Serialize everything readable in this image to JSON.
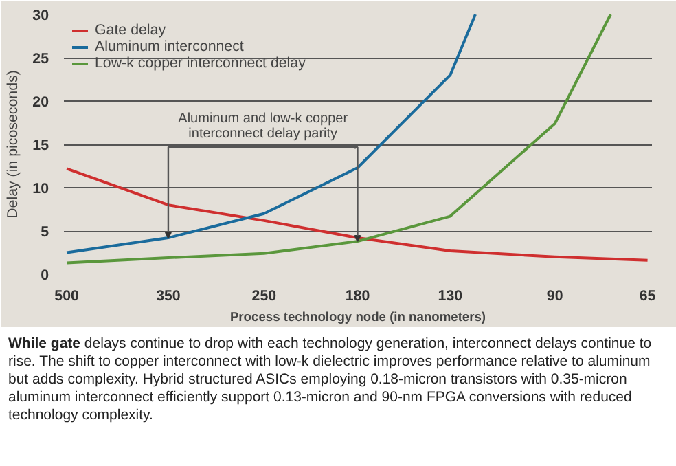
{
  "chart_data": {
    "type": "line",
    "xlabel": "Process technology node (in nanometers)",
    "ylabel": "Delay (in picoseconds)",
    "xlim": [
      505,
      64
    ],
    "xticks": [
      500,
      350,
      250,
      180,
      130,
      90,
      65
    ],
    "log": "x",
    "ylim": [
      0,
      30
    ],
    "yticks": [
      0,
      5,
      10,
      15,
      20,
      25,
      30
    ],
    "grid": "y",
    "legend": "top left",
    "marker": "none",
    "line_style": "solid",
    "series": [
      {
        "name": "Gate delay",
        "color": "#cf2f2f",
        "x": [
          500,
          350,
          250,
          180,
          130,
          90,
          65
        ],
        "values": [
          12.2,
          8,
          6.2,
          4.2,
          2.7,
          2.0,
          1.6
        ]
      },
      {
        "name": "Aluminum interconnect",
        "color": "#1a6b9c",
        "x": [
          500,
          350,
          250,
          180,
          130,
          119
        ],
        "values": [
          2.5,
          4.2,
          7,
          12.3,
          23,
          30
        ]
      },
      {
        "name": "Low-k copper interconnect delay",
        "color": "#5a973c",
        "x": [
          500,
          350,
          250,
          180,
          130,
          90,
          74
        ],
        "values": [
          1.3,
          1.9,
          2.4,
          3.8,
          6.7,
          17.4,
          30
        ]
      }
    ],
    "annotations": [
      "Aluminum and low-k copper\ninterconnect delay parity",
      "While gate delays continue to drop with each technology generation, interconnect delays continue to rise.  The shift to copper interconnect with low-k dielectric improves performance relative to aluminum but adds complexity.  Hybrid structured ASICs employing 0.18-micron transistors with 0.35-micron aluminum interconnect efficiently support 0.13-micron and 90-nm FPGA conversions with reduced technology complexity."
    ]
  }
}
